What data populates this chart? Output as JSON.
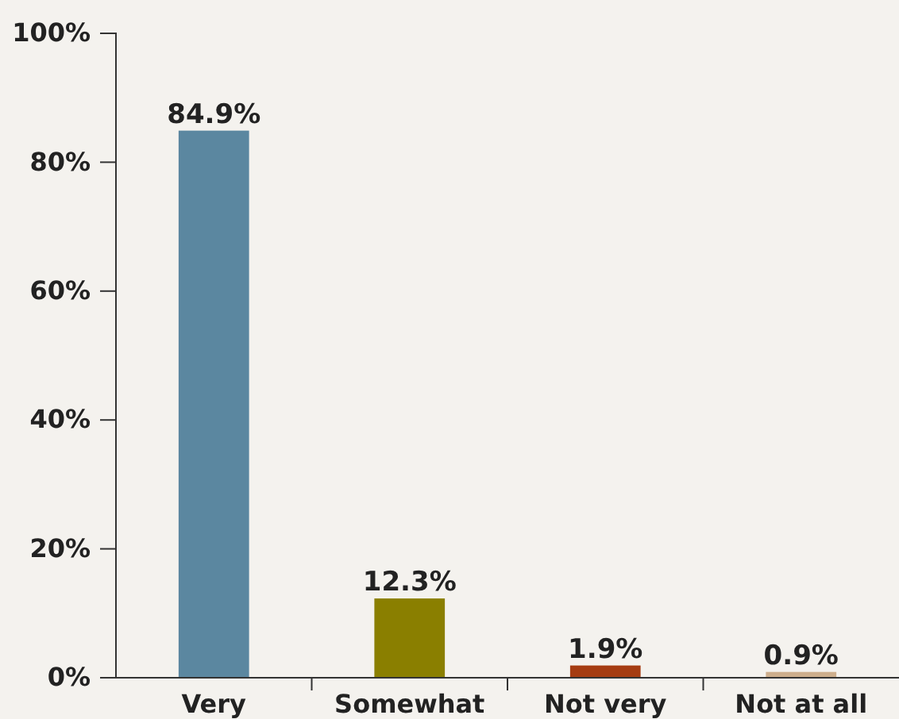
{
  "chart_data": {
    "type": "bar",
    "categories": [
      "Very",
      "Somewhat",
      "Not very",
      "Not at all"
    ],
    "values": [
      84.9,
      12.3,
      1.9,
      0.9
    ],
    "colors": [
      "#5b87a0",
      "#8a7f00",
      "#a53c12",
      "#cdae8c"
    ],
    "value_labels": [
      "84.9%",
      "12.3%",
      "1.9%",
      "0.9%"
    ],
    "ylim": [
      0,
      100
    ],
    "yticks": [
      {
        "value": 0,
        "label": "0%"
      },
      {
        "value": 20,
        "label": "20%"
      },
      {
        "value": 40,
        "label": "40%"
      },
      {
        "value": 60,
        "label": "60%"
      },
      {
        "value": 80,
        "label": "80%"
      },
      {
        "value": 100,
        "label": "100%"
      }
    ],
    "grid": false
  }
}
